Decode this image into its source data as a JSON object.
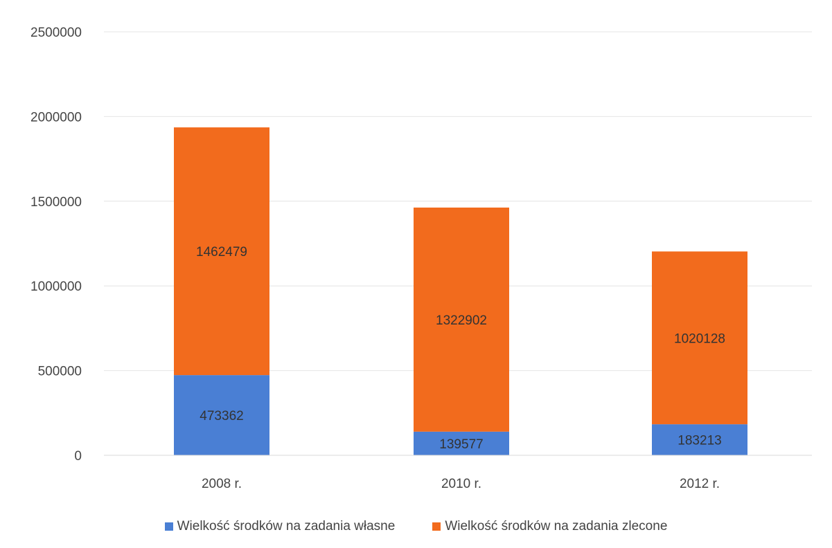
{
  "chart_data": {
    "type": "bar",
    "stacked": true,
    "categories": [
      "2008 r.",
      "2010 r.",
      "2012 r."
    ],
    "series": [
      {
        "name": "Wielkość środków na zadania własne",
        "values": [
          473362,
          139577,
          183213
        ],
        "color": "#4a7fd4"
      },
      {
        "name": "Wielkość środków na zadania zlecone",
        "values": [
          1462479,
          1322902,
          1020128
        ],
        "color": "#f26b1d"
      }
    ],
    "ylim": [
      0,
      2500000
    ],
    "yticks": [
      0,
      500000,
      1000000,
      1500000,
      2000000,
      2500000
    ],
    "ytick_labels": [
      "0",
      "500000",
      "1000000",
      "1500000",
      "2000000",
      "2500000"
    ],
    "title": "",
    "xlabel": "",
    "ylabel": "",
    "grid": true,
    "legend_position": "bottom"
  }
}
